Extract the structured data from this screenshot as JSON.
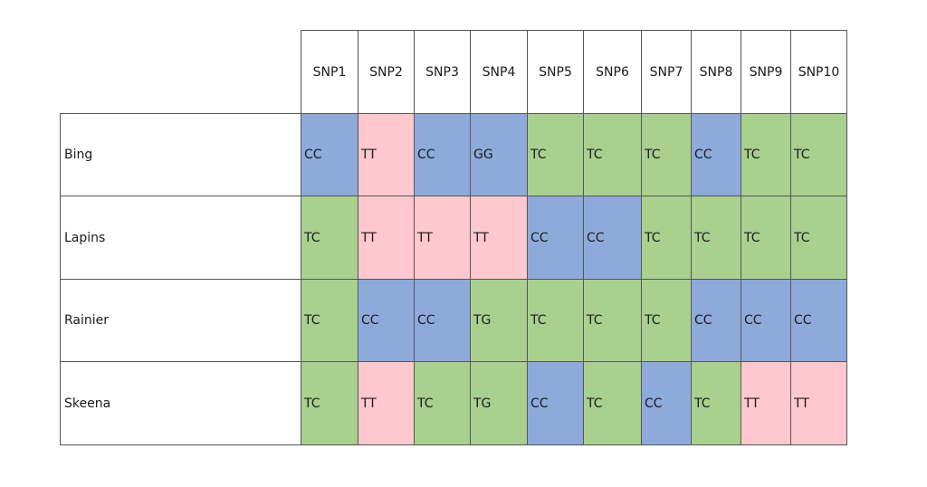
{
  "table": {
    "columns": [
      "SNP1",
      "SNP2",
      "SNP3",
      "SNP4",
      "SNP5",
      "SNP6",
      "SNP7",
      "SNP8",
      "SNP9",
      "SNP10"
    ],
    "rows": [
      {
        "label": "Bing",
        "values": [
          "CC",
          "TT",
          "CC",
          "GG",
          "TC",
          "TC",
          "TC",
          "CC",
          "TC",
          "TC"
        ]
      },
      {
        "label": "Lapins",
        "values": [
          "TC",
          "TT",
          "TT",
          "TT",
          "CC",
          "CC",
          "TC",
          "TC",
          "TC",
          "TC"
        ]
      },
      {
        "label": "Rainier",
        "values": [
          "TC",
          "CC",
          "CC",
          "TG",
          "TC",
          "TC",
          "TC",
          "CC",
          "CC",
          "CC"
        ]
      },
      {
        "label": "Skeena",
        "values": [
          "TC",
          "TT",
          "TC",
          "TG",
          "CC",
          "TC",
          "CC",
          "TC",
          "TT",
          "TT"
        ]
      }
    ]
  },
  "colors": {
    "TC": "#a9d08e",
    "TG": "#a9d08e",
    "CC": "#8eaadb",
    "GG": "#8eaadb",
    "TT": "#ffc7ce"
  }
}
